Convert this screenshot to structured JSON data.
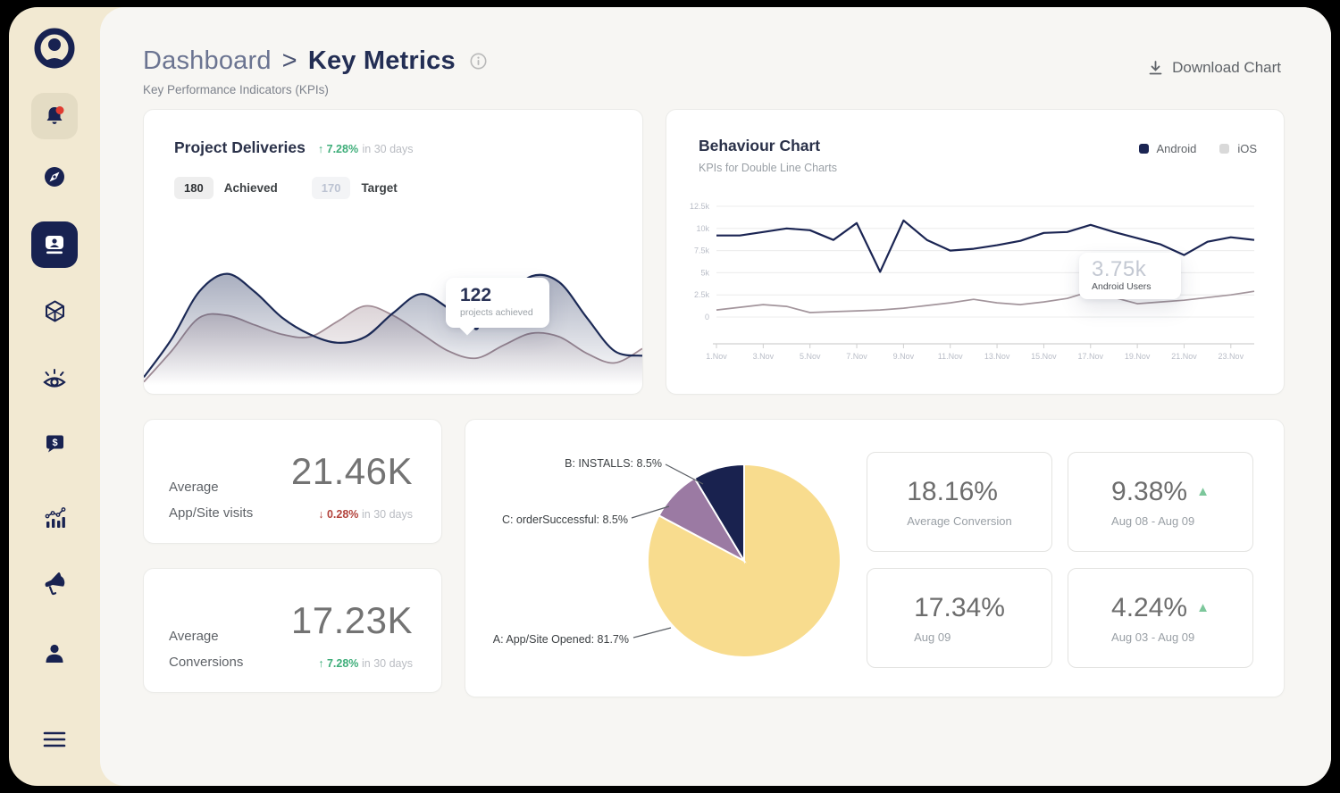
{
  "colors": {
    "navy": "#1b2553",
    "cream": "#f2e9d2",
    "green": "#3fae7a",
    "red": "#b3433c",
    "pie_yellow": "#f8dc8e",
    "pie_purple": "#9b7aa3",
    "pie_navy": "#19224f",
    "ios_line": "#a3959c"
  },
  "header": {
    "breadcrumb_parent": "Dashboard",
    "breadcrumb_sep": ">",
    "breadcrumb_current": "Key Metrics",
    "subtitle": "Key Performance Indicators (KPIs)",
    "download_label": "Download Chart"
  },
  "sidebar": {
    "icons": [
      "avatar",
      "notifications-bell",
      "compass",
      "contact-card",
      "cube",
      "eye",
      "sales-chat",
      "analytics-chart",
      "megaphone",
      "profile",
      "menu"
    ]
  },
  "project_card": {
    "title": "Project Deliveries",
    "delta_arrow": "↑",
    "delta": "7.28%",
    "delta_suffix": "in 30 days",
    "achieved_value": "180",
    "achieved_label": "Achieved",
    "target_value": "170",
    "target_label": "Target",
    "tooltip_value": "122",
    "tooltip_label": "projects achieved"
  },
  "behaviour_card": {
    "title": "Behaviour Chart",
    "subtitle": "KPIs for Double Line Charts",
    "legend": [
      {
        "label": "Android",
        "color": "#1b2553"
      },
      {
        "label": "iOS",
        "color": "#d9d9d9"
      }
    ],
    "tooltip_value": "3.75k",
    "tooltip_label": "Android Users"
  },
  "visits_card": {
    "label1": "Average",
    "label2": "App/Site visits",
    "value": "21.46K",
    "delta_arrow": "↓",
    "delta": "0.28%",
    "delta_suffix": "in 30 days"
  },
  "conversions_card": {
    "label1": "Average",
    "label2": "Conversions",
    "value": "17.23K",
    "delta_arrow": "↑",
    "delta": "7.28%",
    "delta_suffix": "in 30 days"
  },
  "stat_cards": [
    {
      "value": "18.16%",
      "label": "Average Conversion",
      "trend_up": false
    },
    {
      "value": "9.38%",
      "label": "Aug 08 - Aug 09",
      "trend_up": true
    },
    {
      "value": "17.34%",
      "label": "Aug 09",
      "trend_up": false
    },
    {
      "value": "4.24%",
      "label": "Aug 03 - Aug 09",
      "trend_up": true
    }
  ],
  "chart_data": [
    {
      "id": "project_deliveries",
      "type": "area",
      "title": "Project Deliveries",
      "yaxis": "hidden",
      "series": [
        {
          "name": "Achieved",
          "color": "#1c2a56",
          "values": [
            8,
            40,
            80,
            95,
            80,
            58,
            44,
            37,
            42,
            62,
            78,
            66,
            50,
            72,
            93,
            88,
            58,
            30,
            26
          ]
        },
        {
          "name": "Target",
          "color": "#a28d96",
          "values": [
            4,
            30,
            58,
            60,
            52,
            44,
            42,
            55,
            68,
            60,
            45,
            30,
            24,
            35,
            45,
            42,
            28,
            20,
            32
          ]
        }
      ],
      "marker": {
        "series": 0,
        "index": 12,
        "value": 122,
        "label": "projects achieved"
      }
    },
    {
      "id": "behaviour",
      "type": "line",
      "title": "Behaviour Chart",
      "x_labels": [
        "1.Nov",
        "3.Nov",
        "5.Nov",
        "7.Nov",
        "9.Nov",
        "11.Nov",
        "13.Nov",
        "15.Nov",
        "17.Nov",
        "19.Nov",
        "21.Nov",
        "23.Nov"
      ],
      "label_every": 2,
      "yticks": [
        "0",
        "2.5k",
        "5k",
        "7.5k",
        "10k",
        "12.5k"
      ],
      "ylim": [
        0,
        12.5
      ],
      "grid": true,
      "legend_position": "top-right",
      "series": [
        {
          "name": "Android",
          "color": "#1b2553",
          "values": [
            9.2,
            9.2,
            9.6,
            10.0,
            9.8,
            8.7,
            10.6,
            5.1,
            10.9,
            8.7,
            7.5,
            7.7,
            8.1,
            8.6,
            9.5,
            9.6,
            10.4,
            9.6,
            8.9,
            8.2,
            7.0,
            8.5,
            9.0,
            8.7
          ]
        },
        {
          "name": "iOS",
          "color": "#a3959c",
          "values": [
            0.8,
            1.1,
            1.4,
            1.2,
            0.5,
            0.6,
            0.7,
            0.8,
            1.0,
            1.3,
            1.6,
            2.0,
            1.6,
            1.4,
            1.7,
            2.1,
            2.9,
            2.2,
            1.5,
            1.7,
            1.9,
            2.2,
            2.5,
            2.9
          ]
        }
      ]
    },
    {
      "id": "conversion_breakdown",
      "type": "pie",
      "slices": [
        {
          "key": "A",
          "label": "A: App/Site Opened: 81.7%",
          "value": 81.7,
          "color": "#f8dc8e"
        },
        {
          "key": "C",
          "label": "C: orderSuccessful: 8.5%",
          "value": 8.5,
          "color": "#9b7aa3"
        },
        {
          "key": "B",
          "label": "B: INSTALLS: 8.5%",
          "value": 8.5,
          "color": "#19224f"
        }
      ]
    }
  ]
}
